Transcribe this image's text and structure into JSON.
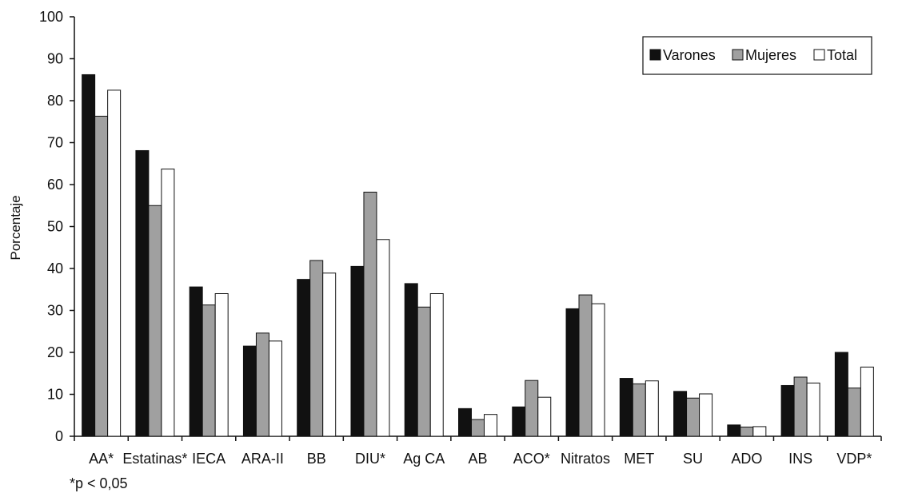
{
  "chart_data": {
    "type": "bar",
    "ylabel": "Porcentaje",
    "ylim": [
      0,
      100
    ],
    "yticks": [
      0,
      10,
      20,
      30,
      40,
      50,
      60,
      70,
      80,
      90,
      100
    ],
    "grid": false,
    "legend_position": "top-right",
    "footnote": "*p < 0,05",
    "categories": [
      "AA*",
      "Estatinas*",
      "IECA",
      "ARA-II",
      "BB",
      "DIU*",
      "Ag CA",
      "AB",
      "ACO*",
      "Nitratos",
      "MET",
      "SU",
      "ADO",
      "INS",
      "VDP*"
    ],
    "series": [
      {
        "name": "Varones",
        "color": "#111111",
        "values": [
          86.2,
          68.1,
          35.6,
          21.5,
          37.4,
          40.5,
          36.4,
          6.6,
          7.0,
          30.4,
          13.8,
          10.7,
          2.7,
          12.1,
          20.0
        ]
      },
      {
        "name": "Mujeres",
        "color": "#a0a0a0",
        "values": [
          76.3,
          55.0,
          31.3,
          24.6,
          41.9,
          58.2,
          30.8,
          4.0,
          13.3,
          33.7,
          12.5,
          9.1,
          2.2,
          14.1,
          11.5
        ]
      },
      {
        "name": "Total",
        "color": "#ffffff",
        "values": [
          82.5,
          63.7,
          34.0,
          22.7,
          38.9,
          46.9,
          34.0,
          5.2,
          9.3,
          31.6,
          13.2,
          10.1,
          2.3,
          12.7,
          16.5
        ]
      }
    ]
  }
}
